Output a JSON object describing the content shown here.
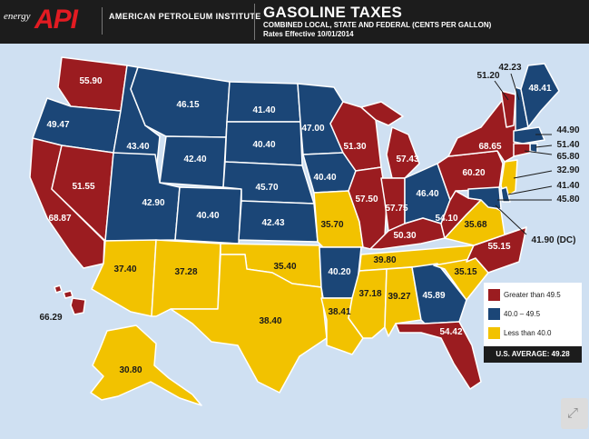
{
  "header": {
    "brand_prefix": "energy",
    "brand_logo": "API",
    "brand_name": "AMERICAN PETROLEUM INSTITUTE",
    "title": "GASOLINE TAXES",
    "subtitle": "COMBINED LOCAL, STATE AND FEDERAL (CENTS PER GALLON)",
    "rates": "Rates Effective 10/01/2014"
  },
  "colors": {
    "high": "#9b1c20",
    "mid": "#1b4677",
    "low": "#f2c200",
    "ocean": "#cfe0f2",
    "header": "#1c1c1c"
  },
  "legend": {
    "high": "Greater than 49.5",
    "mid": "40.0 – 49.5",
    "low": "Less than 40.0",
    "average": "U.S. AVERAGE: 49.28"
  },
  "states": {
    "WA": "55.90",
    "OR": "49.47",
    "CA": "68.87",
    "NV": "51.55",
    "ID": "43.40",
    "MT": "46.15",
    "WY": "42.40",
    "UT": "42.90",
    "CO": "40.40",
    "AZ": "37.40",
    "NM": "37.28",
    "ND": "41.40",
    "SD": "40.40",
    "NE": "45.70",
    "KS": "42.43",
    "OK": "35.40",
    "TX": "38.40",
    "MN": "47.00",
    "IA": "40.40",
    "MO": "35.70",
    "AR": "40.20",
    "LA": "38.41",
    "WI": "51.30",
    "IL": "57.50",
    "MI": "57.43",
    "IN": "57.75",
    "OH": "46.40",
    "KY": "50.30",
    "TN": "39.80",
    "MS": "37.18",
    "AL": "39.27",
    "GA": "45.89",
    "FL": "54.42",
    "SC": "35.15",
    "NC": "55.15",
    "VA": "35.68",
    "WV": "54.10",
    "PA": "60.20",
    "NY": "68.65",
    "VT": "51.20",
    "NH": "42.23",
    "ME": "48.41",
    "MA": "44.90",
    "RI": "51.40",
    "CT": "65.80",
    "NJ": "32.90",
    "DE": "41.40",
    "MD": "45.80",
    "DC": "41.90 (DC)",
    "AK": "30.80",
    "HI": "66.29"
  }
}
